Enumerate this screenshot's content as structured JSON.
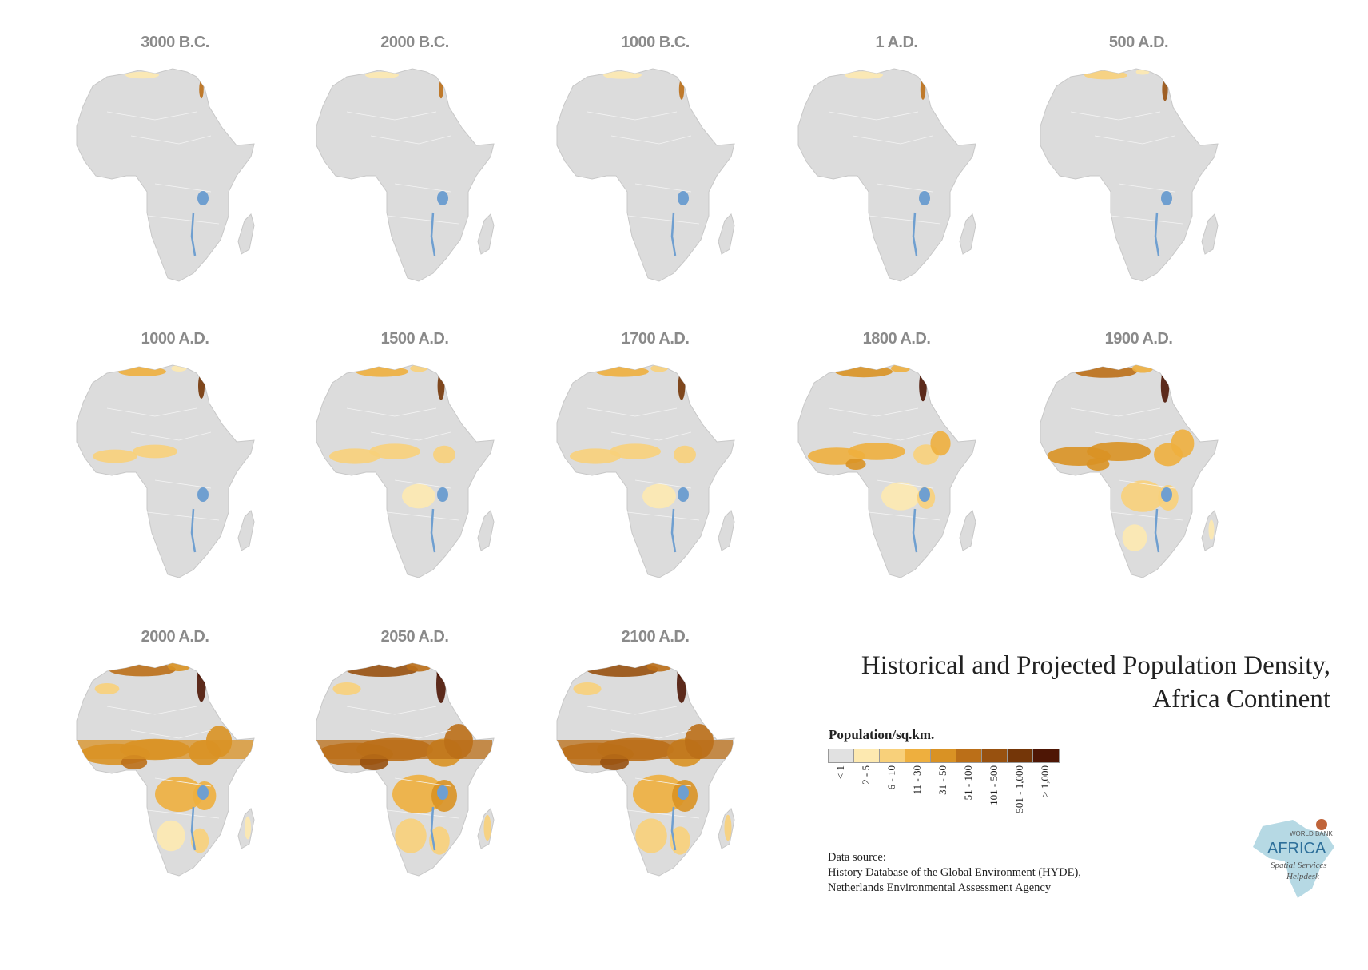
{
  "map_data": {
    "type": "choropleth_small_multiples",
    "region": "Africa",
    "title_line1": "Historical and Projected Population Density,",
    "title_line2": "Africa Continent",
    "legend": {
      "title": "Population/sq.km.",
      "classes": [
        {
          "label": "< 1",
          "color": "#e1e1e1"
        },
        {
          "label": "2 - 5",
          "color": "#fde9b0"
        },
        {
          "label": "6 - 10",
          "color": "#f8d07a"
        },
        {
          "label": "11 - 30",
          "color": "#eeaf3e"
        },
        {
          "label": "31 - 50",
          "color": "#d99224"
        },
        {
          "label": "51 - 100",
          "color": "#bb6f18"
        },
        {
          "label": "101 - 500",
          "color": "#98510f"
        },
        {
          "label": "501 - 1,000",
          "color": "#743608"
        },
        {
          "label": "> 1,000",
          "color": "#4e1605"
        }
      ]
    },
    "panels": [
      {
        "label": "3000 B.C.",
        "level": 0
      },
      {
        "label": "2000 B.C.",
        "level": 0
      },
      {
        "label": "1000 B.C.",
        "level": 1
      },
      {
        "label": "1 A.D.",
        "level": 1
      },
      {
        "label": "500 A.D.",
        "level": 2
      },
      {
        "label": "1000 A.D.",
        "level": 3
      },
      {
        "label": "1500 A.D.",
        "level": 4
      },
      {
        "label": "1700 A.D.",
        "level": 4
      },
      {
        "label": "1800 A.D.",
        "level": 5
      },
      {
        "label": "1900 A.D.",
        "level": 6
      },
      {
        "label": "2000 A.D.",
        "level": 7
      },
      {
        "label": "2050 A.D.",
        "level": 8
      },
      {
        "label": "2100 A.D.",
        "level": 8
      }
    ],
    "source_line1": "Data source:",
    "source_line2": "History Database of the Global Environment (HYDE),",
    "source_line3": "Netherlands Environmental Assessment Agency",
    "logo": {
      "line1": "WORLD BANK",
      "line2": "AFRICA",
      "line3": "Spatial Services",
      "line4": "Helpdesk"
    },
    "colors": {
      "land": "#dcdcdc",
      "lake": "#6f9fd0",
      "border": "#f4f4f4",
      "title_gray": "#8a8a8a"
    }
  }
}
